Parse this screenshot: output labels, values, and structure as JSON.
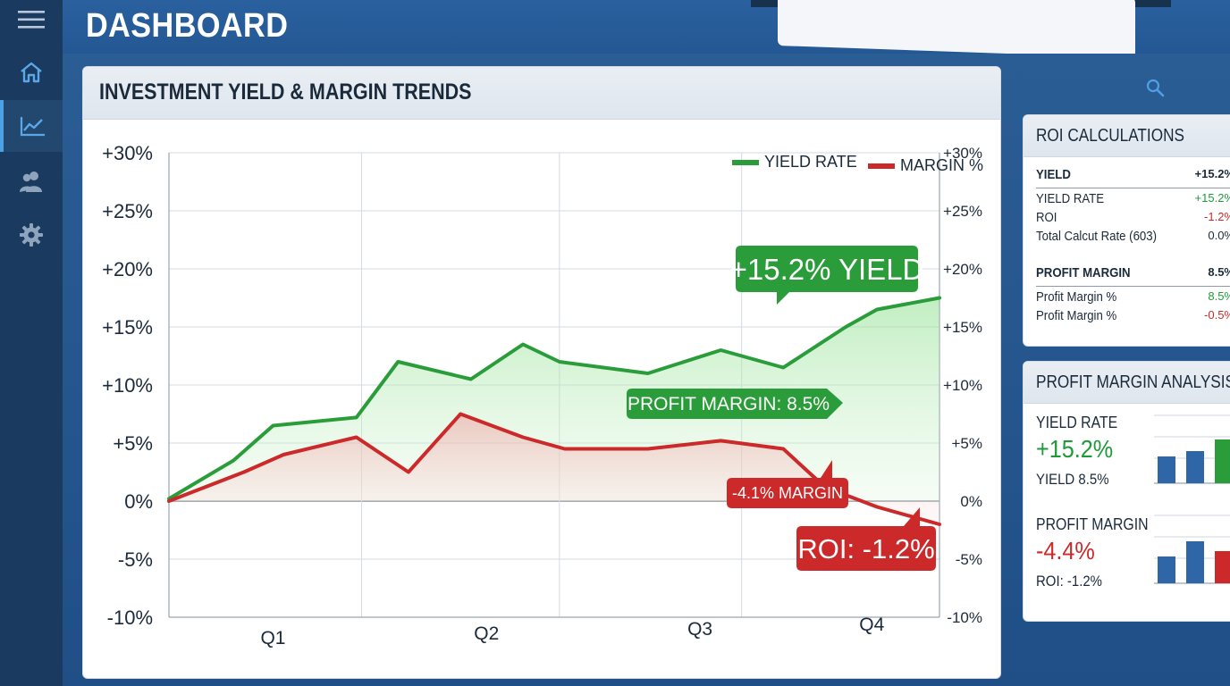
{
  "header": {
    "title": "DASHBOARD"
  },
  "sidebar": {
    "items": [
      {
        "icon": "menu-icon"
      },
      {
        "icon": "home-icon"
      },
      {
        "icon": "chart-icon",
        "active": true
      },
      {
        "icon": "users-icon"
      },
      {
        "icon": "gear-icon"
      }
    ]
  },
  "main_panel": {
    "title": "INVESTMENT YIELD & MARGIN TRENDS",
    "callouts": {
      "yield": "+15.2% YIELD",
      "profit_margin": "PROFIT MARGIN: 8.5%",
      "margin": "-4.1% MARGIN",
      "roi": "ROI: -1.2%"
    }
  },
  "chart_data": {
    "type": "area",
    "title": "INVESTMENT YIELD & MARGIN TRENDS",
    "categories": [
      "Q1",
      "Q2",
      "Q3",
      "Q4"
    ],
    "y_ticks_left": [
      "+30%",
      "+25%",
      "+20%",
      "+15%",
      "+10%",
      "+5%",
      "0%",
      "-5%",
      "-10%"
    ],
    "y_ticks_right": [
      "+30%",
      "+25%",
      "+20%",
      "+15%",
      "+10%",
      "+5%",
      "0%",
      "-5%",
      "-10%"
    ],
    "ylim": [
      -10,
      30
    ],
    "grid": true,
    "legend_position": "top-right",
    "series": [
      {
        "name": "YIELD RATE",
        "color": "#2a9d3a",
        "x": [
          0,
          0.62,
          1.0,
          1.8,
          2.2,
          2.9,
          3.4,
          3.75,
          4.6,
          5.3,
          5.9,
          6.5,
          6.8,
          7.4
        ],
        "values": [
          0.2,
          3.5,
          6.5,
          7.2,
          12.0,
          10.5,
          13.5,
          12.0,
          11.0,
          13.0,
          11.5,
          15.0,
          16.5,
          17.5
        ]
      },
      {
        "name": "MARGIN %",
        "color": "#cc2a2a",
        "x": [
          0,
          0.72,
          1.1,
          1.8,
          2.3,
          2.8,
          3.4,
          3.8,
          4.6,
          5.3,
          5.9,
          6.3,
          6.8,
          7.4
        ],
        "values": [
          0.0,
          2.5,
          4.0,
          5.5,
          2.5,
          7.5,
          5.5,
          4.5,
          4.5,
          5.2,
          4.5,
          1.2,
          -0.5,
          -2.0
        ]
      }
    ]
  },
  "roi_panel": {
    "title": "ROI CALCULATIONS",
    "yield_section": {
      "label": "YIELD",
      "value": "+15.2%",
      "rows": [
        {
          "label": "YIELD RATE",
          "value": "+15.2%",
          "tone": "pos"
        },
        {
          "label": "ROI",
          "value": "-1.2%",
          "tone": "neg"
        },
        {
          "label": "Total Calcut Rate (603)",
          "value": "0.0%",
          "tone": "dark"
        }
      ]
    },
    "margin_section": {
      "label": "PROFIT MARGIN",
      "value": "8.5%",
      "rows": [
        {
          "label": "Profit Margin %",
          "value": "8.5%",
          "tone": "pos"
        },
        {
          "label": "Profit Margin %",
          "value": "-0.5%",
          "tone": "neg"
        }
      ]
    }
  },
  "pm_panel": {
    "title": "PROFIT MARGIN ANALYSIS",
    "yield_label": "YIELD RATE",
    "yield_value": "+15.2%",
    "yield_sub": "YIELD 8.5%",
    "margin_label": "PROFIT MARGIN",
    "margin_value": "-4.4%",
    "margin_sub": "ROI: -1.2%"
  }
}
